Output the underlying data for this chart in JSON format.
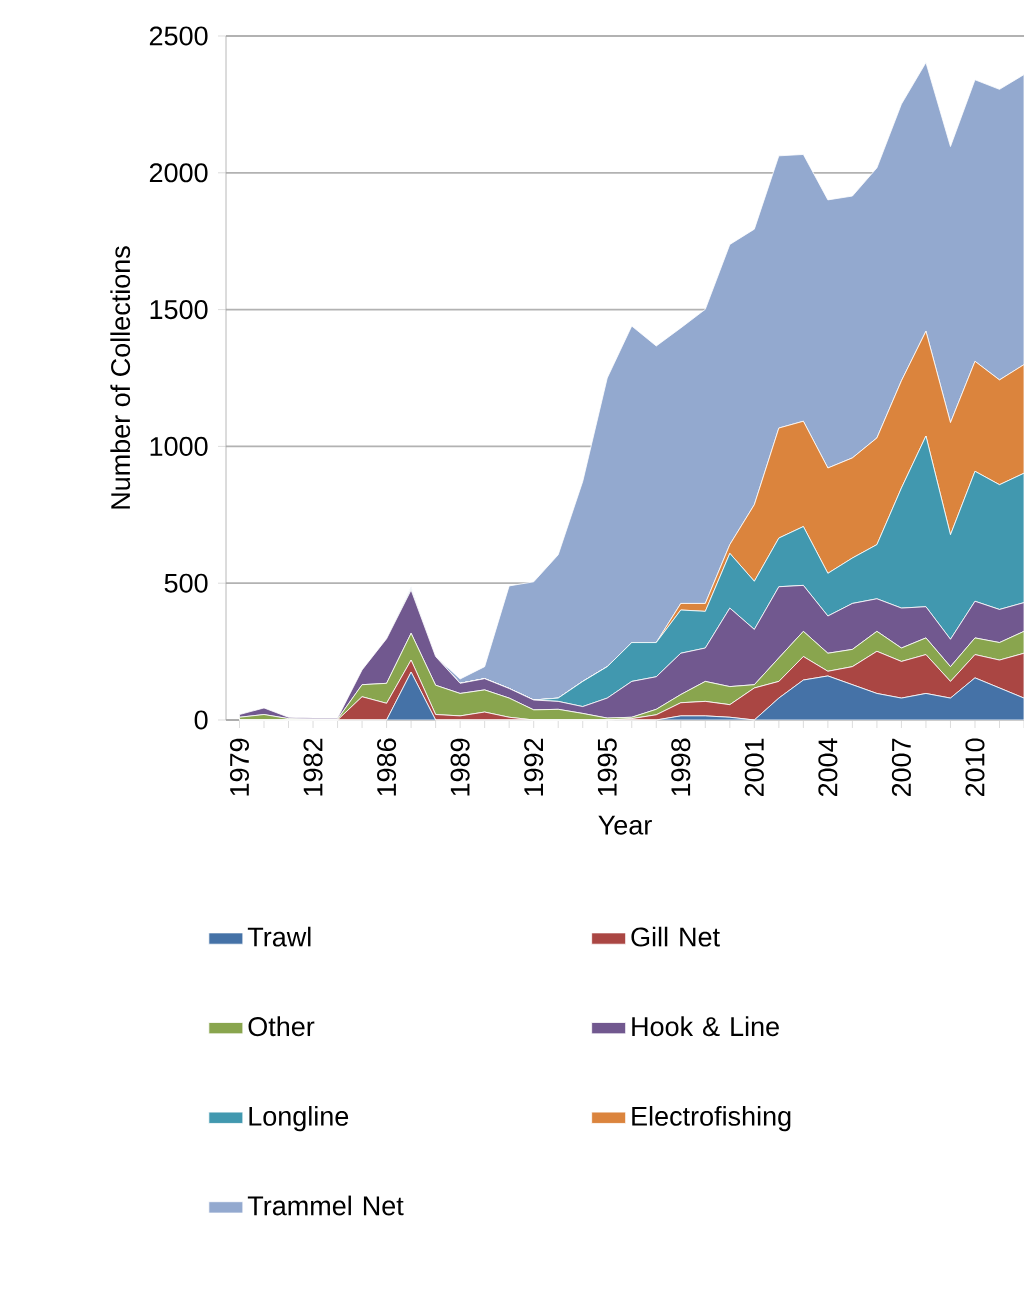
{
  "chart_data": {
    "type": "area",
    "stacked": true,
    "xlabel": "Year",
    "ylabel": "Number of Collections",
    "categories": [
      "1979",
      null,
      null,
      "1982",
      null,
      null,
      "1986",
      null,
      null,
      "1989",
      null,
      null,
      "1992",
      null,
      null,
      "1995",
      null,
      null,
      "1998",
      null,
      null,
      "2001",
      null,
      null,
      "2004",
      null,
      null,
      "2007",
      null,
      null,
      "2010",
      null,
      null
    ],
    "ylim": [
      0,
      2500
    ],
    "yticks": [
      0,
      500,
      1000,
      1500,
      2000,
      2500
    ],
    "grid": "y",
    "legend": "bottom",
    "series": [
      {
        "name": "Trawl",
        "color": "#4572a7",
        "values": [
          0,
          0,
          0,
          0,
          0,
          0,
          0,
          175,
          0,
          0,
          0,
          0,
          0,
          0,
          0,
          0,
          0,
          0,
          15,
          15,
          10,
          0,
          80,
          146,
          161,
          129,
          97,
          80,
          97,
          80,
          154,
          117,
          80
        ]
      },
      {
        "name": "Gill Net",
        "color": "#aa4643",
        "values": [
          0,
          0,
          0,
          0,
          0,
          85,
          61,
          44,
          20,
          15,
          29,
          10,
          0,
          0,
          0,
          0,
          5,
          19,
          48,
          53,
          46,
          117,
          61,
          86,
          17,
          66,
          154,
          134,
          142,
          61,
          85,
          102,
          164
        ]
      },
      {
        "name": "Other",
        "color": "#89a54e",
        "values": [
          10,
          20,
          5,
          3,
          3,
          44,
          73,
          98,
          107,
          82,
          81,
          70,
          37,
          39,
          24,
          7,
          5,
          20,
          30,
          73,
          66,
          12,
          86,
          92,
          66,
          63,
          73,
          49,
          61,
          54,
          61,
          64,
          80
        ]
      },
      {
        "name": "Hook & Line",
        "color": "#71588f",
        "values": [
          10,
          24,
          5,
          4,
          4,
          54,
          163,
          158,
          105,
          37,
          41,
          35,
          36,
          29,
          25,
          73,
          131,
          119,
          151,
          122,
          287,
          202,
          260,
          168,
          136,
          168,
          119,
          146,
          114,
          100,
          134,
          121,
          105
        ]
      },
      {
        "name": "Longline",
        "color": "#4198af",
        "values": [
          0,
          0,
          0,
          0,
          0,
          0,
          0,
          5,
          0,
          0,
          0,
          0,
          0,
          12,
          92,
          115,
          142,
          125,
          158,
          134,
          200,
          176,
          178,
          215,
          156,
          166,
          198,
          439,
          624,
          382,
          475,
          456,
          473
        ]
      },
      {
        "name": "Electrofishing",
        "color": "#db843d",
        "values": [
          0,
          0,
          0,
          0,
          0,
          0,
          0,
          0,
          0,
          0,
          0,
          0,
          0,
          0,
          0,
          0,
          0,
          0,
          24,
          29,
          32,
          280,
          402,
          385,
          385,
          366,
          390,
          392,
          383,
          410,
          402,
          383,
          397
        ]
      },
      {
        "name": "Trammel Net",
        "color": "#93a9cf",
        "values": [
          0,
          0,
          0,
          0,
          0,
          0,
          0,
          7,
          0,
          16,
          44,
          375,
          432,
          524,
          731,
          1055,
          1157,
          1084,
          1007,
          1075,
          1097,
          1007,
          995,
          975,
          980,
          957,
          987,
          1011,
          982,
          1009,
          1029,
          1062,
          1060
        ]
      }
    ]
  }
}
